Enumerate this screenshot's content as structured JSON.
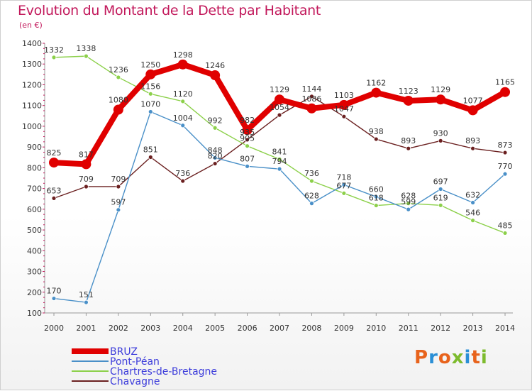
{
  "title": "Evolution du Montant de la Dette par Habitant",
  "unit": "(en €)",
  "logo": {
    "text": "Proxiti",
    "colors": [
      "#e8631c",
      "#2a8fd6",
      "#e8631c",
      "#7dbb2d",
      "#2a8fd6",
      "#e8631c",
      "#7dbb2d"
    ]
  },
  "chart_data": {
    "type": "line",
    "title": "Evolution du Montant de la Dette par Habitant",
    "ylabel": "(en €)",
    "xlabel": "",
    "ylim": [
      100,
      1400
    ],
    "yticks": [
      100,
      200,
      300,
      400,
      500,
      600,
      700,
      800,
      900,
      1000,
      1100,
      1200,
      1300,
      1400
    ],
    "grid": false,
    "legend": "bottom-left",
    "x": [
      "2000",
      "2001",
      "2002",
      "2003",
      "2004",
      "2005",
      "2006",
      "2007",
      "2008",
      "2009",
      "2010",
      "2011",
      "2012",
      "2013",
      "2014"
    ],
    "series": [
      {
        "name": "BRUZ",
        "color": "#e00000",
        "values": [
          825,
          817,
          1080,
          1250,
          1298,
          1246,
          982,
          1129,
          1086,
          1103,
          1162,
          1123,
          1129,
          1077,
          1165
        ]
      },
      {
        "name": "Pont-Péan",
        "color": "#4a90c8",
        "values": [
          170,
          151,
          597,
          1070,
          1004,
          848,
          807,
          794,
          628,
          718,
          660,
          599,
          697,
          632,
          770
        ]
      },
      {
        "name": "Chartres-de-Bretagne",
        "color": "#8cd04a",
        "values": [
          1332,
          1338,
          1236,
          1156,
          1120,
          992,
          905,
          841,
          736,
          677,
          618,
          628,
          619,
          546,
          485
        ]
      },
      {
        "name": "Chavagne",
        "color": "#6b2020",
        "values": [
          653,
          709,
          709,
          851,
          736,
          820,
          935,
          1054,
          1144,
          1047,
          938,
          893,
          930,
          893,
          873
        ]
      }
    ]
  }
}
